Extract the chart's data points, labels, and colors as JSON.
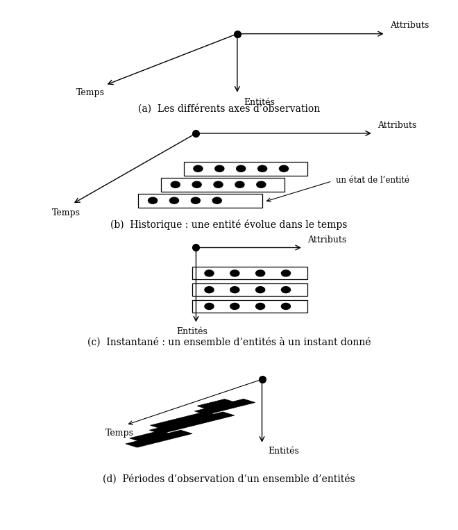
{
  "bg_color": "#ffffff",
  "caption_a": "(a)  Les différents axes d’observation",
  "caption_b": "(b)  Historique : une entité évolue dans le temps",
  "caption_c": "(c)  Instantané : un ensemble d’entités à un instant donné",
  "caption_d": "(d)  Périodes d’observation d’un ensemble d’entités",
  "label_attributs": "Attributs",
  "label_entites": "Entités",
  "label_temps": "Temps",
  "label_etat": "un état de l’entité",
  "font_size_caption": 10,
  "font_size_label": 9
}
